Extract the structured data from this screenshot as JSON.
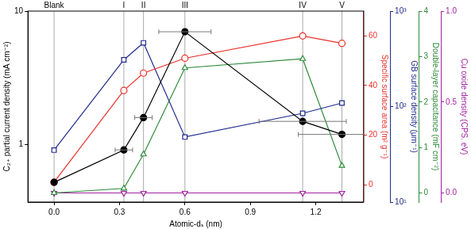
{
  "chart_data": {
    "type": "line",
    "x_label": "Atomic-dₛ (nm)",
    "x": [
      0.0,
      0.32,
      0.41,
      0.6,
      1.14,
      1.32
    ],
    "xlim": [
      -0.12,
      1.42
    ],
    "xticks": [
      {
        "value": 0,
        "label": "0.0"
      },
      {
        "value": 0.3,
        "label": "0.3"
      },
      {
        "value": 0.6,
        "label": "0.6"
      },
      {
        "value": 0.9,
        "label": "0.9"
      },
      {
        "value": 1.2,
        "label": "1.2"
      }
    ],
    "grid": false,
    "annotations": [
      {
        "x": 0.0,
        "text": "Blank"
      },
      {
        "x": 0.32,
        "text": "I"
      },
      {
        "x": 0.41,
        "text": "II"
      },
      {
        "x": 0.6,
        "text": "III"
      },
      {
        "x": 1.14,
        "text": "IV"
      },
      {
        "x": 1.32,
        "text": "V"
      }
    ],
    "axes": {
      "y": {
        "label": "C₂₊ partial current density (mA cm⁻²)",
        "color": "#000000",
        "log": true,
        "lim": [
          0.37,
          10
        ],
        "ticks": [
          1,
          10
        ]
      },
      "y2": {
        "label": "Specific surface area (m² g⁻¹)",
        "color": "#e8302a",
        "log": false,
        "lim": [
          -7,
          70
        ],
        "ticks": [
          0,
          20,
          40,
          60
        ]
      },
      "y3": {
        "label": "GB surface density (μm⁻¹)",
        "color": "#1f2a8a",
        "log": true,
        "lim": [
          10,
          1000
        ],
        "ticks": [
          {
            "value": 10,
            "label": "10¹"
          },
          {
            "value": 100,
            "label": "10²"
          },
          {
            "value": 1000,
            "label": "10³"
          }
        ]
      },
      "y4": {
        "label": "Double-layer capacitance (mF cm⁻²)",
        "color": "#2e8b3a",
        "log": false,
        "lim": [
          -0.2,
          4
        ],
        "ticks": [
          0,
          1,
          2,
          3,
          4
        ]
      },
      "y5": {
        "label": "Cu oxide density (CPS. eV)",
        "color": "#a020a0",
        "log": false,
        "lim": [
          -0.05,
          1.0
        ],
        "ticks": [
          {
            "value": 0,
            "label": "0.0"
          },
          {
            "value": 0.5,
            "label": "0.5"
          },
          {
            "value": 1.0,
            "label": "1.0"
          }
        ]
      }
    },
    "series": [
      {
        "axis": "y",
        "color": "#000000",
        "marker": "circle",
        "values": [
          0.52,
          0.91,
          1.59,
          7.0,
          1.49,
          1.19
        ],
        "x_errors": [
          null,
          0.04,
          0.04,
          0.12,
          0.2,
          0.2
        ]
      },
      {
        "axis": "y2",
        "color": "#e8302a",
        "marker": "open_circle",
        "values": [
          1,
          38,
          45,
          51,
          60,
          57
        ]
      },
      {
        "axis": "y3",
        "color": "#1f2a8a",
        "marker": "open_square",
        "values": [
          35,
          309,
          465,
          48,
          85,
          109
        ]
      },
      {
        "axis": "y4",
        "color": "#2e8b3a",
        "marker": "open_triangle",
        "values": [
          0,
          0.1,
          0.85,
          2.75,
          2.95,
          0.6
        ]
      },
      {
        "axis": "y5",
        "color": "#a020a0",
        "marker": "open_triangle_down",
        "values": [
          0,
          0,
          0,
          0,
          0,
          0
        ]
      }
    ]
  }
}
